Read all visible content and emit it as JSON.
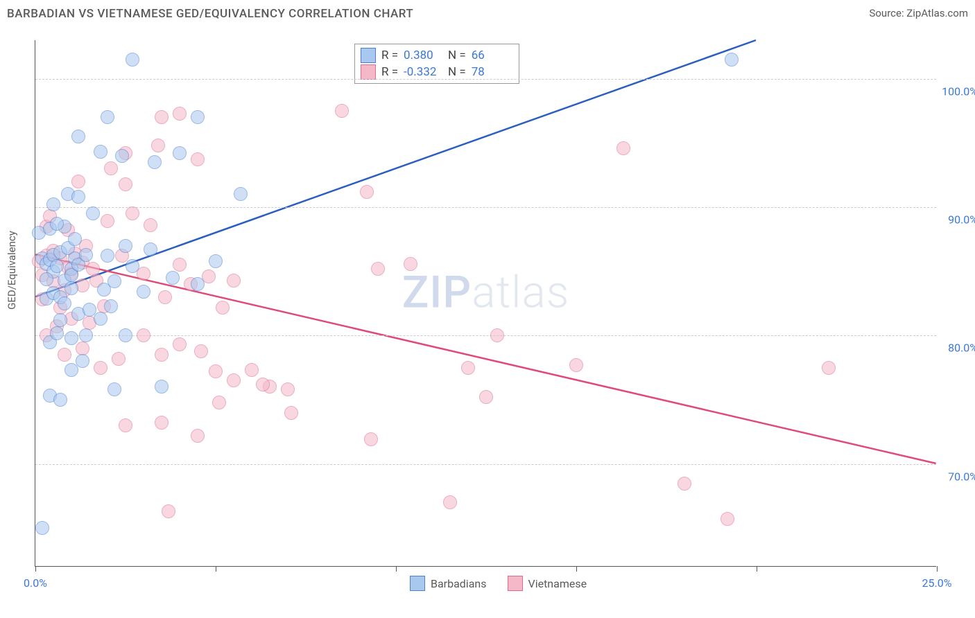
{
  "title": "BARBADIAN VS VIETNAMESE GED/EQUIVALENCY CORRELATION CHART",
  "source": "Source: ZipAtlas.com",
  "ylabel": "GED/Equivalency",
  "watermark_zip": "ZIP",
  "watermark_atlas": "atlas",
  "chart": {
    "type": "scatter",
    "xlim": [
      0,
      25
    ],
    "ylim": [
      62,
      103
    ],
    "background_color": "#ffffff",
    "grid_color": "#cccccc",
    "grid_style": "dashed",
    "y_gridlines": [
      70,
      80,
      90,
      100
    ],
    "y_tick_labels": [
      "70.0%",
      "80.0%",
      "90.0%",
      "100.0%"
    ],
    "x_ticks": [
      0,
      5,
      10,
      15,
      20,
      25
    ],
    "x_tick_labels": {
      "0": "0.0%",
      "25": "25.0%"
    },
    "marker_radius": 10,
    "marker_opacity": 0.55
  },
  "series": {
    "barbadians": {
      "label": "Barbadians",
      "fill": "#a8c8f0",
      "stroke": "#4a7fd0",
      "r_value": "0.380",
      "n_value": "66",
      "trend": {
        "x1": 0,
        "y1": 83,
        "x2": 20,
        "y2": 103,
        "width": 2.5,
        "color": "#2a5fc0"
      },
      "points": [
        [
          0.2,
          86
        ],
        [
          0.3,
          85.6
        ],
        [
          0.4,
          85.9
        ],
        [
          0.5,
          85
        ],
        [
          0.5,
          86.3
        ],
        [
          0.6,
          85.4
        ],
        [
          0.7,
          86.5
        ],
        [
          0.8,
          84.3
        ],
        [
          0.9,
          86.8
        ],
        [
          1.0,
          85.2
        ],
        [
          1.0,
          84.7
        ],
        [
          1.1,
          86
        ],
        [
          1.2,
          85.5
        ],
        [
          0.3,
          82.9
        ],
        [
          0.5,
          83.3
        ],
        [
          0.7,
          83
        ],
        [
          0.8,
          82.5
        ],
        [
          1.2,
          81.7
        ],
        [
          1.5,
          82
        ],
        [
          1.8,
          81.3
        ],
        [
          0.4,
          79.5
        ],
        [
          0.6,
          80.2
        ],
        [
          1.0,
          79.8
        ],
        [
          1.4,
          80
        ],
        [
          1.0,
          77.3
        ],
        [
          1.3,
          78
        ],
        [
          0.4,
          75.3
        ],
        [
          0.7,
          75
        ],
        [
          2.2,
          75.8
        ],
        [
          3.5,
          76
        ],
        [
          0.1,
          88
        ],
        [
          0.4,
          88.3
        ],
        [
          0.8,
          88.5
        ],
        [
          1.1,
          87.5
        ],
        [
          0.5,
          90.2
        ],
        [
          0.9,
          91
        ],
        [
          1.2,
          90.8
        ],
        [
          2.7,
          101.5
        ],
        [
          2.0,
          97
        ],
        [
          4.5,
          97
        ],
        [
          1.2,
          95.5
        ],
        [
          1.8,
          94.3
        ],
        [
          2.4,
          94
        ],
        [
          3.3,
          93.5
        ],
        [
          4.0,
          94.2
        ],
        [
          2.0,
          86.2
        ],
        [
          2.5,
          87
        ],
        [
          3.2,
          86.7
        ],
        [
          2.2,
          84.2
        ],
        [
          3.0,
          83.4
        ],
        [
          3.8,
          84.5
        ],
        [
          4.5,
          84
        ],
        [
          5.0,
          85.8
        ],
        [
          2.1,
          82.3
        ],
        [
          2.5,
          80
        ],
        [
          5.7,
          91
        ],
        [
          0.2,
          65
        ],
        [
          0.6,
          88.7
        ],
        [
          1.6,
          89.5
        ],
        [
          1.4,
          86.3
        ],
        [
          0.3,
          84.4
        ],
        [
          1.0,
          83.7
        ],
        [
          19.3,
          101.5
        ],
        [
          2.7,
          85.4
        ],
        [
          0.7,
          81.2
        ],
        [
          1.9,
          83.6
        ]
      ]
    },
    "vietnamese": {
      "label": "Vietnamese",
      "fill": "#f5b8c8",
      "stroke": "#e06a8a",
      "r_value": "-0.332",
      "n_value": "78",
      "trend": {
        "x1": 0,
        "y1": 86.3,
        "x2": 25,
        "y2": 70,
        "width": 2.5,
        "color": "#e04a78"
      },
      "points": [
        [
          0.1,
          85.8
        ],
        [
          0.3,
          86.2
        ],
        [
          0.5,
          86.6
        ],
        [
          0.7,
          86
        ],
        [
          0.9,
          85.3
        ],
        [
          1.1,
          86.4
        ],
        [
          1.3,
          85.7
        ],
        [
          0.2,
          84.7
        ],
        [
          0.5,
          84.2
        ],
        [
          0.8,
          83.5
        ],
        [
          1.0,
          84.8
        ],
        [
          1.3,
          83.9
        ],
        [
          0.2,
          82.8
        ],
        [
          0.7,
          82.2
        ],
        [
          1.0,
          81.3
        ],
        [
          1.5,
          81
        ],
        [
          1.9,
          82.3
        ],
        [
          0.3,
          80
        ],
        [
          0.8,
          78.5
        ],
        [
          1.3,
          79
        ],
        [
          1.8,
          77.5
        ],
        [
          2.3,
          78.2
        ],
        [
          0.3,
          88.5
        ],
        [
          0.9,
          88.2
        ],
        [
          1.4,
          87
        ],
        [
          2.0,
          88.9
        ],
        [
          2.7,
          89.5
        ],
        [
          3.2,
          88.6
        ],
        [
          2.5,
          94.2
        ],
        [
          3.4,
          94.8
        ],
        [
          3.5,
          97
        ],
        [
          4.0,
          97.3
        ],
        [
          4.5,
          93.7
        ],
        [
          3.0,
          84.8
        ],
        [
          3.6,
          83
        ],
        [
          4.0,
          85.5
        ],
        [
          4.3,
          84
        ],
        [
          4.8,
          84.6
        ],
        [
          3.0,
          80
        ],
        [
          3.5,
          78.5
        ],
        [
          4.0,
          79.3
        ],
        [
          4.6,
          78.8
        ],
        [
          5.0,
          77.2
        ],
        [
          5.5,
          76.5
        ],
        [
          5.2,
          82.2
        ],
        [
          5.5,
          84.3
        ],
        [
          6.0,
          77.3
        ],
        [
          6.5,
          76
        ],
        [
          7.0,
          75.8
        ],
        [
          2.5,
          73
        ],
        [
          3.5,
          73.2
        ],
        [
          5.1,
          74.8
        ],
        [
          6.3,
          76.2
        ],
        [
          7.1,
          74
        ],
        [
          4.5,
          72.2
        ],
        [
          3.7,
          66.3
        ],
        [
          8.5,
          97.5
        ],
        [
          9.2,
          91.2
        ],
        [
          10.4,
          85.6
        ],
        [
          9.5,
          85.2
        ],
        [
          9.3,
          71.9
        ],
        [
          11.5,
          67
        ],
        [
          12.0,
          77.5
        ],
        [
          12.5,
          75.2
        ],
        [
          12.8,
          80
        ],
        [
          15.0,
          77.7
        ],
        [
          16.3,
          94.6
        ],
        [
          18.0,
          68.5
        ],
        [
          19.2,
          65.7
        ],
        [
          22.0,
          77.5
        ],
        [
          1.2,
          92
        ],
        [
          2.5,
          91.8
        ],
        [
          2.1,
          93
        ],
        [
          0.4,
          89.3
        ],
        [
          1.6,
          85.2
        ],
        [
          2.4,
          86.2
        ],
        [
          1.7,
          84.3
        ],
        [
          0.6,
          80.7
        ]
      ]
    }
  },
  "stats_legend": {
    "r_label": "R =",
    "n_label": "N ="
  },
  "bottom_legend": {
    "barbadians": "Barbadians",
    "vietnamese": "Vietnamese"
  }
}
